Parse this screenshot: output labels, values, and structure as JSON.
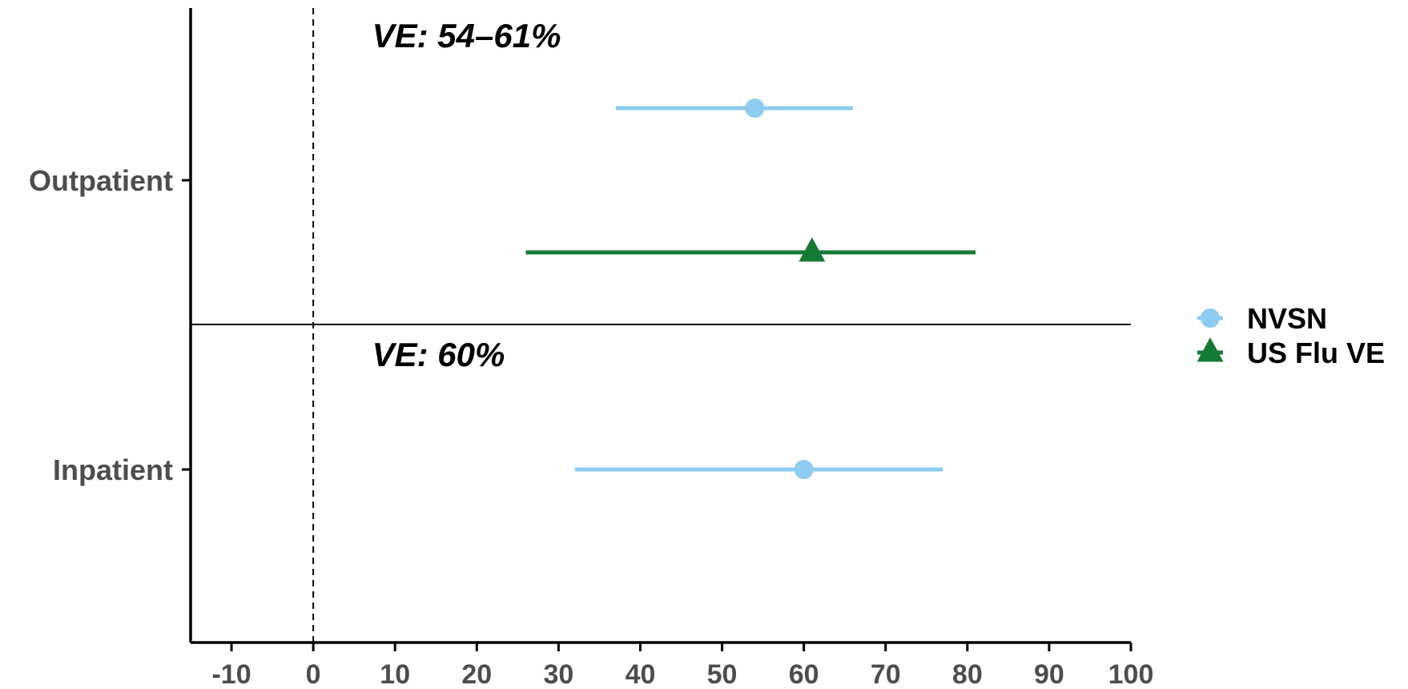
{
  "chart_data": {
    "type": "forest",
    "x_range": [
      -15,
      100
    ],
    "x_ticks": [
      -10,
      0,
      10,
      20,
      30,
      40,
      50,
      60,
      70,
      80,
      90,
      100
    ],
    "reference_line_x": 0,
    "categories": [
      "Outpatient",
      "Inpatient"
    ],
    "annotations": [
      {
        "category": "Outpatient",
        "text": "VE: 54–61%"
      },
      {
        "category": "Inpatient",
        "text": "VE: 60%"
      }
    ],
    "series": [
      {
        "name": "NVSN",
        "color": "#8ecdf0",
        "marker": "circle",
        "points": [
          {
            "category": "Outpatient",
            "estimate": 54,
            "lower": 37,
            "upper": 66
          },
          {
            "category": "Inpatient",
            "estimate": 60,
            "lower": 32,
            "upper": 77
          }
        ]
      },
      {
        "name": "US Flu VE",
        "color": "#157a34",
        "marker": "triangle",
        "points": [
          {
            "category": "Outpatient",
            "estimate": 61,
            "lower": 26,
            "upper": 81
          }
        ]
      }
    ],
    "legend_position": "right",
    "grid": false
  }
}
